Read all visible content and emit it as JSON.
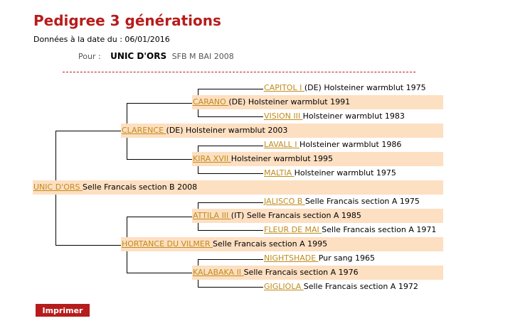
{
  "page": {
    "title": "Pedigree 3 générations",
    "date_line": "Données à la date du : 06/01/2016",
    "pour_label": "Pour :",
    "subject_name": "UNIC D'ORS",
    "subject_desc": "SFB M BAI 2008"
  },
  "pedigree": {
    "subject": {
      "name": "UNIC D'ORS",
      "info": "Selle Francais section B 2008"
    },
    "sire": {
      "name": "CLARENCE",
      "info": "(DE) Holsteiner warmblut 2003"
    },
    "sire_sire": {
      "name": "CARANO",
      "info": "(DE) Holsteiner warmblut 1991"
    },
    "sire_sire_sire": {
      "name": "CAPITOL I",
      "info": "(DE) Holsteiner warmblut 1975"
    },
    "sire_sire_dam": {
      "name": "VISION III",
      "info": "Holsteiner warmblut 1983"
    },
    "sire_dam": {
      "name": "KIRA XVII",
      "info": "Holsteiner warmblut 1995"
    },
    "sire_dam_sire": {
      "name": "LAVALL I",
      "info": "Holsteiner warmblut 1986"
    },
    "sire_dam_dam": {
      "name": "MALTIA",
      "info": "Holsteiner warmblut 1975"
    },
    "dam": {
      "name": "HORTANCE DU VILMER",
      "info": "Selle Francais section A 1995"
    },
    "dam_sire": {
      "name": "ATTILA III",
      "info": "(IT) Selle Francais section A 1985"
    },
    "dam_sire_sire": {
      "name": "JALISCO B",
      "info": "Selle Francais section A 1975"
    },
    "dam_sire_dam": {
      "name": "FLEUR DE MAI",
      "info": "Selle Francais section A 1971"
    },
    "dam_dam": {
      "name": "KALABAKA II",
      "info": "Selle Francais section A 1976"
    },
    "dam_dam_sire": {
      "name": "NIGHTSHADE",
      "info": "Pur sang 1965"
    },
    "dam_dam_dam": {
      "name": "GIGLIOLA",
      "info": "Selle Francais section A 1972"
    }
  },
  "buttons": {
    "print_label": "Imprimer"
  }
}
